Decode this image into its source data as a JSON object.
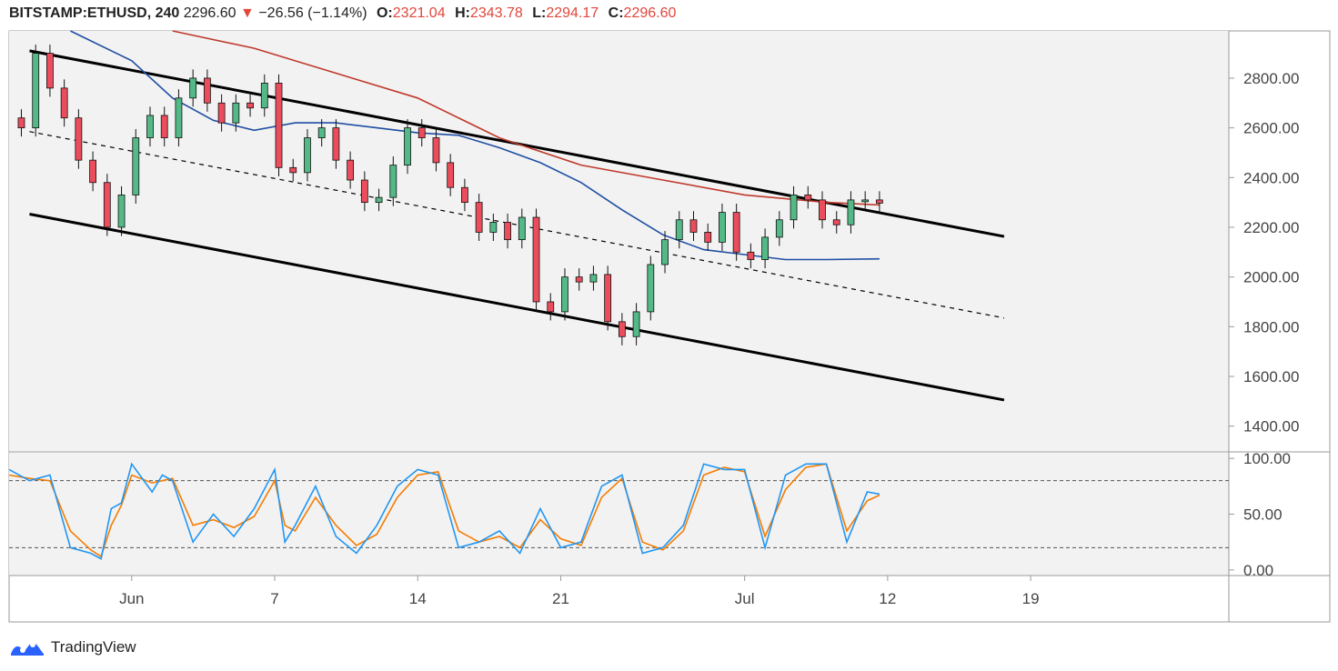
{
  "header": {
    "symbol": "BITSTAMP:ETHUSD, 240",
    "last": "2296.60",
    "change_arrow": "▼",
    "change": "−26.56 (−1.14%)",
    "o_label": "O:",
    "o_value": "2321.04",
    "h_label": "H:",
    "h_value": "2343.78",
    "l_label": "L:",
    "l_value": "2294.17",
    "c_label": "C:",
    "c_value": "2296.60"
  },
  "brand": {
    "name": "TradingView",
    "icon": "tradingview-logo-icon"
  },
  "colors": {
    "up_candle": "#53b987",
    "down_candle": "#eb4d5c",
    "wick": "#111111",
    "sma_slow": "#c0392b",
    "sma_fast": "#1f4ea3",
    "stoch_k": "#2196f3",
    "stoch_d": "#f57c00",
    "pane_bg": "#f2f2f2",
    "trendline": "#000000"
  },
  "chart_data": [
    {
      "type": "candlestick",
      "pane": "price",
      "series_names": [],
      "x_ticks": [
        "Jun",
        "7",
        "14",
        "21",
        "Jul",
        "12",
        "19"
      ],
      "y_ticks": [
        "1400.00",
        "1600.00",
        "1800.00",
        "2000.00",
        "2200.00",
        "2400.00",
        "2600.00",
        "2800.00"
      ],
      "ylim": [
        1300,
        2990
      ],
      "xlim_days": [
        -6.0,
        53.7
      ],
      "candles_4h_sampled": {
        "days": [
          -5.4,
          -4.7,
          -4.0,
          -3.3,
          -2.6,
          -1.9,
          -1.2,
          -0.5,
          0.2,
          0.9,
          1.6,
          2.3,
          3.0,
          3.7,
          4.4,
          5.1,
          5.8,
          6.5,
          7.2,
          7.9,
          8.6,
          9.3,
          10.0,
          10.7,
          11.4,
          12.1,
          12.8,
          13.5,
          14.2,
          14.9,
          15.6,
          16.3,
          17.0,
          17.7,
          18.4,
          19.1,
          19.8,
          20.5,
          21.2,
          21.9,
          22.6,
          23.3,
          24.0,
          24.7,
          25.4,
          26.1,
          26.8,
          27.5,
          28.2,
          28.9,
          29.6,
          30.3,
          31.0,
          31.7,
          32.4,
          33.1,
          33.8,
          34.5,
          35.2,
          35.9,
          36.6
        ],
        "close": [
          2600,
          2900,
          2760,
          2640,
          2470,
          2380,
          2200,
          2330,
          2560,
          2650,
          2560,
          2720,
          2800,
          2700,
          2620,
          2700,
          2680,
          2780,
          2440,
          2420,
          2560,
          2600,
          2470,
          2390,
          2300,
          2320,
          2450,
          2600,
          2560,
          2460,
          2360,
          2300,
          2180,
          2220,
          2150,
          2240,
          1900,
          1860,
          2000,
          1980,
          2010,
          1820,
          1760,
          1860,
          2050,
          2150,
          2230,
          2180,
          2140,
          2260,
          2100,
          2070,
          2160,
          2230,
          2330,
          2310,
          2230,
          2210,
          2310,
          2310,
          2297
        ]
      },
      "moving_averages": [
        {
          "kind": "slow",
          "days": [
            2,
            6,
            10,
            14,
            18,
            22,
            26,
            30,
            34,
            36.6
          ],
          "values": [
            2990,
            2920,
            2820,
            2720,
            2560,
            2450,
            2390,
            2330,
            2300,
            2290
          ]
        },
        {
          "kind": "fast",
          "days": [
            -3,
            0,
            2,
            4,
            6,
            8,
            10,
            12,
            14,
            16,
            18,
            20,
            22,
            24,
            26,
            28,
            30,
            32,
            34,
            36.6
          ],
          "values": [
            2990,
            2870,
            2720,
            2630,
            2590,
            2620,
            2620,
            2600,
            2580,
            2570,
            2520,
            2460,
            2380,
            2270,
            2170,
            2110,
            2090,
            2070,
            2070,
            2073
          ]
        }
      ],
      "trendlines": [
        {
          "style": "solid",
          "days": [
            -5.0,
            42.7
          ],
          "values": [
            2910,
            2163
          ]
        },
        {
          "style": "dashed",
          "days": [
            -5.0,
            42.7
          ],
          "values": [
            2585,
            1835
          ]
        },
        {
          "style": "solid",
          "days": [
            -5.0,
            42.7
          ],
          "values": [
            2253,
            1505
          ]
        }
      ]
    },
    {
      "type": "line",
      "pane": "stochastic",
      "series_names": [],
      "y_ticks": [
        "0.00",
        "50.00",
        "100.00"
      ],
      "ylim": [
        -5,
        105
      ],
      "levels": [
        20,
        80
      ],
      "days": [
        -6.0,
        -5.0,
        -4.0,
        -3.0,
        -2.0,
        -1.5,
        -1.0,
        -0.5,
        0.0,
        1.0,
        1.5,
        2.0,
        3.0,
        4.0,
        5.0,
        6.0,
        7.0,
        7.5,
        8.0,
        9.0,
        10.0,
        11.0,
        12.0,
        13.0,
        14.0,
        15.0,
        16.0,
        17.0,
        18.0,
        19.0,
        20.0,
        21.0,
        22.0,
        23.0,
        24.0,
        25.0,
        26.0,
        27.0,
        28.0,
        29.0,
        30.0,
        31.0,
        32.0,
        33.0,
        34.0,
        35.0,
        36.0,
        36.6
      ],
      "k_values": [
        90,
        80,
        85,
        20,
        15,
        10,
        55,
        60,
        95,
        70,
        85,
        80,
        25,
        50,
        30,
        55,
        90,
        25,
        40,
        75,
        30,
        15,
        40,
        75,
        90,
        85,
        20,
        25,
        35,
        15,
        55,
        20,
        25,
        75,
        85,
        15,
        20,
        40,
        95,
        90,
        90,
        20,
        85,
        95,
        95,
        25,
        70,
        68
      ],
      "d_values": [
        85,
        82,
        80,
        35,
        18,
        12,
        40,
        58,
        85,
        78,
        80,
        82,
        40,
        45,
        38,
        48,
        80,
        40,
        35,
        65,
        40,
        22,
        32,
        65,
        85,
        88,
        35,
        25,
        30,
        20,
        45,
        28,
        22,
        65,
        82,
        25,
        18,
        35,
        85,
        92,
        88,
        30,
        72,
        92,
        95,
        35,
        62,
        67
      ]
    }
  ]
}
